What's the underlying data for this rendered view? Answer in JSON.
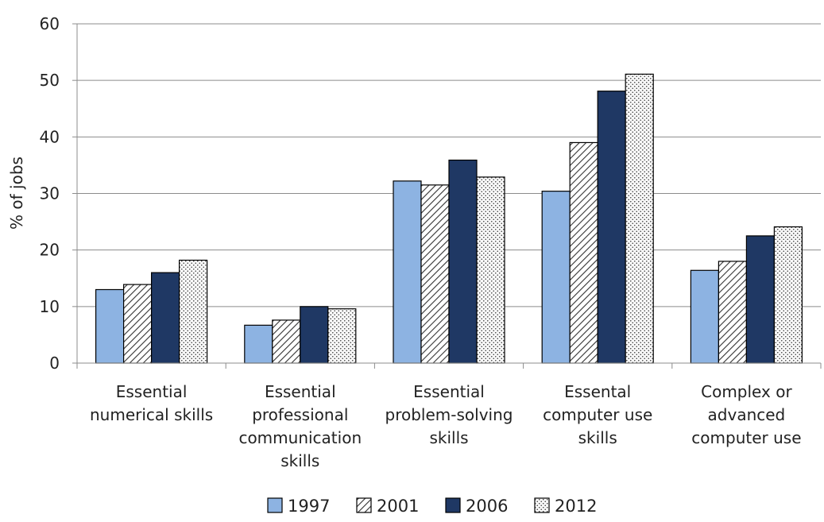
{
  "chart_data": {
    "type": "bar",
    "categories": [
      [
        "Essential",
        "numerical skills"
      ],
      [
        "Essential",
        "professional",
        "communication",
        "skills"
      ],
      [
        "Essential",
        "problem-solving",
        "skills"
      ],
      [
        "Essental",
        "computer use",
        "skills"
      ],
      [
        "Complex or",
        "advanced",
        "computer use"
      ]
    ],
    "series": [
      {
        "name": "1997",
        "values": [
          13.0,
          6.7,
          32.2,
          30.4,
          16.4
        ],
        "color": "#8db3e2",
        "pattern": "solid"
      },
      {
        "name": "2001",
        "values": [
          13.9,
          7.6,
          31.5,
          39.0,
          18.0
        ],
        "color": "#ffffff",
        "pattern": "diagonal-hatch"
      },
      {
        "name": "2006",
        "values": [
          16.0,
          10.0,
          35.9,
          48.1,
          22.5
        ],
        "color": "#1f3864",
        "pattern": "solid"
      },
      {
        "name": "2012",
        "values": [
          18.2,
          9.6,
          32.9,
          51.1,
          24.1
        ],
        "color": "#ffffff",
        "pattern": "dots"
      }
    ],
    "ylabel": "% of jobs",
    "xlabel": "",
    "title": "",
    "ylim": [
      0,
      60
    ],
    "yticks": [
      0,
      10,
      20,
      30,
      40,
      50,
      60
    ],
    "grid": true,
    "legend_position": "bottom"
  }
}
